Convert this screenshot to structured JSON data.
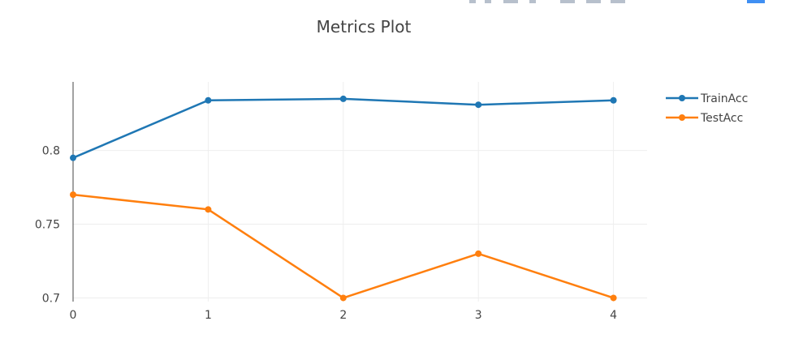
{
  "modebar": {
    "icons": [
      "camera-icon",
      "zoom-icon",
      "pan-icon",
      "box-select-icon",
      "lasso-icon",
      "zoom-in-icon",
      "zoom-out-icon",
      "autoscale-icon",
      "reset-axes-icon",
      "plotly-logo-icon"
    ]
  },
  "chart_data": {
    "type": "line",
    "title": "Metrics Plot",
    "xlabel": "",
    "ylabel": "",
    "x": [
      0,
      1,
      2,
      3,
      4
    ],
    "x_tick_labels": [
      "0",
      "1",
      "2",
      "3",
      "4"
    ],
    "y_tick_values": [
      0.7,
      0.75,
      0.8
    ],
    "y_tick_labels": [
      "0.7",
      "0.75",
      "0.8"
    ],
    "ylim": [
      0.6975,
      0.8465
    ],
    "xlim": [
      0,
      4.25
    ],
    "grid": true,
    "legend_position": "top-right",
    "series": [
      {
        "name": "TrainAcc",
        "color": "#1f77b4",
        "values": [
          0.795,
          0.834,
          0.835,
          0.831,
          0.834
        ]
      },
      {
        "name": "TestAcc",
        "color": "#ff7f0e",
        "values": [
          0.77,
          0.76,
          0.7,
          0.73,
          0.7
        ]
      }
    ]
  }
}
